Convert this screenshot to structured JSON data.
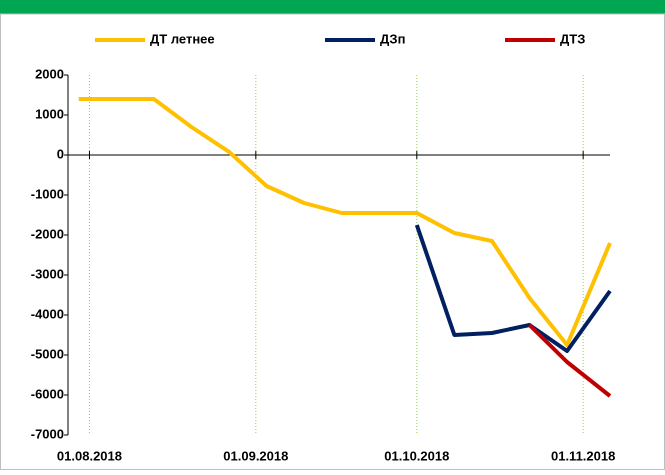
{
  "chart_data": {
    "type": "line",
    "x": [
      "30.07.2018",
      "06.08.2018",
      "13.08.2018",
      "20.08.2018",
      "27.08.2018",
      "03.09.2018",
      "10.09.2018",
      "17.09.2018",
      "24.09.2018",
      "01.10.2018",
      "08.10.2018",
      "15.10.2018",
      "22.10.2018",
      "29.10.2018",
      "06.11.2018"
    ],
    "series": [
      {
        "name": "ДТ летнее",
        "color": "#FFC000",
        "values": [
          1400,
          1400,
          1400,
          700,
          80,
          -775,
          -1200,
          -1450,
          -1450,
          -1450,
          -1950,
          -2150,
          -3575,
          -4750,
          -2200
        ]
      },
      {
        "name": "ДЗп",
        "color": "#002060",
        "values": [
          null,
          null,
          null,
          null,
          null,
          null,
          null,
          null,
          null,
          -1750,
          -4500,
          -4450,
          -4250,
          -4900,
          -3400
        ]
      },
      {
        "name": "ДТЗ",
        "color": "#C00000",
        "values": [
          null,
          null,
          null,
          null,
          null,
          null,
          null,
          null,
          null,
          null,
          null,
          null,
          -4250,
          -5175,
          -6025
        ]
      }
    ],
    "ylim": [
      -7000,
      2000
    ],
    "yticks": [
      2000,
      1000,
      0,
      -1000,
      -2000,
      -3000,
      -4000,
      -5000,
      -6000,
      -7000
    ],
    "xlim": [
      "28.07.2018",
      "06.11.2018"
    ],
    "xticks": [
      "01.08.2018",
      "01.09.2018",
      "01.10.2018",
      "01.11.2018"
    ],
    "grid": true,
    "legend": "top"
  }
}
